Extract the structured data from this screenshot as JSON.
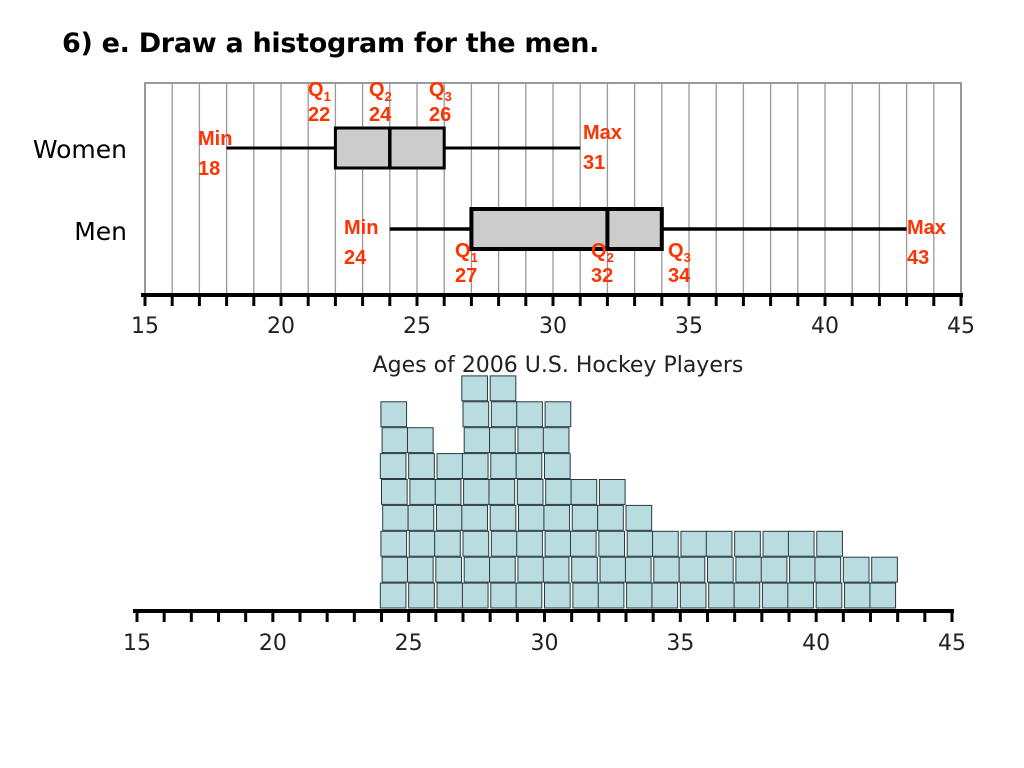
{
  "slide": {
    "heading": "6) e.  Draw a histogram for the men."
  },
  "chart_data": [
    {
      "type": "boxplot",
      "xlim": [
        15,
        45
      ],
      "tick_labels": [
        "15",
        "20",
        "25",
        "30",
        "35",
        "40",
        "45"
      ],
      "groups": [
        {
          "name": "Women",
          "min": 18,
          "q1": 22,
          "q2": 24,
          "q3": 26,
          "max": 31,
          "labels": {
            "min": [
              "Min",
              "18"
            ],
            "q1": [
              "Q",
              "1",
              "22"
            ],
            "q2": [
              "Q",
              "2",
              "24"
            ],
            "q3": [
              "Q",
              "3",
              "26"
            ],
            "max": [
              "Max",
              "31"
            ]
          }
        },
        {
          "name": "Men",
          "min": 24,
          "q1": 27,
          "q2": 32,
          "q3": 34,
          "max": 43,
          "labels": {
            "min": [
              "Min",
              "24"
            ],
            "q1": [
              "Q",
              "1",
              "27"
            ],
            "q2": [
              "Q",
              "2",
              "32"
            ],
            "q3": [
              "Q",
              "3",
              "34"
            ],
            "max": [
              "Max",
              "43"
            ]
          }
        }
      ],
      "colors": {
        "box_fill": "#cccccc",
        "annotation": "#ff3300",
        "grid": "#999999"
      }
    },
    {
      "type": "dotplot",
      "title": "Ages of 2006 U.S. Hockey Players",
      "xlim": [
        15,
        45
      ],
      "tick_labels": [
        "15",
        "20",
        "25",
        "30",
        "35",
        "40",
        "45"
      ],
      "values": [
        24,
        25,
        26,
        27,
        28,
        29,
        30,
        31,
        32,
        33,
        34,
        35,
        36,
        37,
        38,
        39,
        40,
        41,
        42
      ],
      "counts": [
        8,
        7,
        6,
        9,
        9,
        8,
        8,
        5,
        5,
        4,
        3,
        3,
        3,
        3,
        3,
        3,
        3,
        2,
        2
      ],
      "colors": {
        "tile_fill": "#b8dce0",
        "tile_edge": "#2a3a40"
      }
    }
  ]
}
